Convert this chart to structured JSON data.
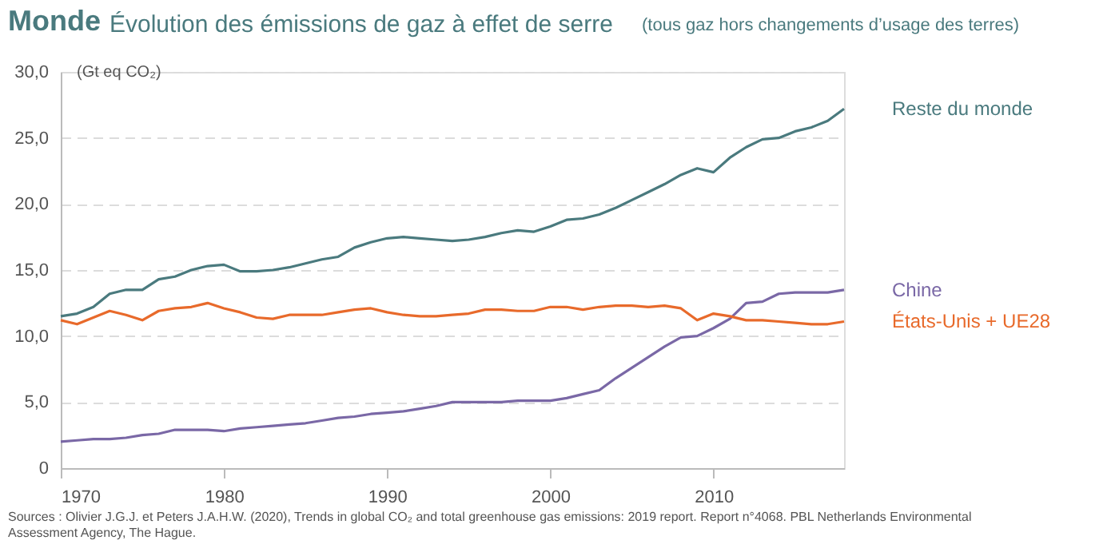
{
  "chart_data": {
    "type": "line",
    "title": "Monde",
    "subtitle": "Évolution des émissions de gaz à effet de serre",
    "ylabel": "(Gt eq CO₂)",
    "annotations": [
      "(tous gaz hors changements d’usage des terres)",
      "Sources : Olivier J.G.J. et Peters J.A.H.W. (2020), Trends in global CO₂ and total greenhouse gas emissions: 2019 report. Report n°4068. PBL Netherlands Environmental Assessment Agency, The Hague."
    ],
    "x": [
      1970,
      1971,
      1972,
      1973,
      1974,
      1975,
      1976,
      1977,
      1978,
      1979,
      1980,
      1981,
      1982,
      1983,
      1984,
      1985,
      1986,
      1987,
      1988,
      1989,
      1990,
      1991,
      1992,
      1993,
      1994,
      1995,
      1996,
      1997,
      1998,
      1999,
      2000,
      2001,
      2002,
      2003,
      2004,
      2005,
      2006,
      2007,
      2008,
      2009,
      2010,
      2011,
      2012,
      2013,
      2014,
      2015,
      2016,
      2017,
      2018
    ],
    "series": [
      {
        "name": "Reste du monde",
        "color": "#4a7a7e",
        "values": [
          11.5,
          11.7,
          12.2,
          13.2,
          13.5,
          13.5,
          14.3,
          14.5,
          15.0,
          15.3,
          15.4,
          14.9,
          14.9,
          15.0,
          15.2,
          15.5,
          15.8,
          16.0,
          16.7,
          17.1,
          17.4,
          17.5,
          17.4,
          17.3,
          17.2,
          17.3,
          17.5,
          17.8,
          18.0,
          17.9,
          18.3,
          18.8,
          18.9,
          19.2,
          19.7,
          20.3,
          20.9,
          21.5,
          22.2,
          22.7,
          22.4,
          23.5,
          24.3,
          24.9,
          25.0,
          25.5,
          25.8,
          26.3,
          27.2
        ]
      },
      {
        "name": "Chine",
        "color": "#7a68a6",
        "values": [
          2.0,
          2.1,
          2.2,
          2.2,
          2.3,
          2.5,
          2.6,
          2.9,
          2.9,
          2.9,
          2.8,
          3.0,
          3.1,
          3.2,
          3.3,
          3.4,
          3.6,
          3.8,
          3.9,
          4.1,
          4.2,
          4.3,
          4.5,
          4.7,
          5.0,
          5.0,
          5.0,
          5.0,
          5.1,
          5.1,
          5.1,
          5.3,
          5.6,
          5.9,
          6.8,
          7.6,
          8.4,
          9.2,
          9.9,
          10.0,
          10.6,
          11.3,
          12.5,
          12.6,
          13.2,
          13.3,
          13.3,
          13.3,
          13.5
        ]
      },
      {
        "name": "États-Unis + UE28",
        "color": "#e86a2b",
        "values": [
          11.2,
          10.9,
          11.4,
          11.9,
          11.6,
          11.2,
          11.9,
          12.1,
          12.2,
          12.5,
          12.1,
          11.8,
          11.4,
          11.3,
          11.6,
          11.6,
          11.6,
          11.8,
          12.0,
          12.1,
          11.8,
          11.6,
          11.5,
          11.5,
          11.6,
          11.7,
          12.0,
          12.0,
          11.9,
          11.9,
          12.2,
          12.2,
          12.0,
          12.2,
          12.3,
          12.3,
          12.2,
          12.3,
          12.1,
          11.2,
          11.7,
          11.5,
          11.2,
          11.2,
          11.1,
          11.0,
          10.9,
          10.9,
          11.1
        ]
      }
    ],
    "xlim": [
      1970,
      2018
    ],
    "xticks": [
      1970,
      1980,
      1990,
      2000,
      2010
    ],
    "ylim": [
      0,
      30
    ],
    "yticks": [
      {
        "value": 0,
        "label": "0"
      },
      {
        "value": 5,
        "label": "5,0"
      },
      {
        "value": 10,
        "label": "10,0"
      },
      {
        "value": 15,
        "label": "15,0"
      },
      {
        "value": 20,
        "label": "20,0"
      },
      {
        "value": 25,
        "label": "25,0"
      },
      {
        "value": 30,
        "label": "30,0"
      }
    ],
    "grid": "y",
    "line_style": "solid",
    "marker": "none",
    "legend": false
  }
}
